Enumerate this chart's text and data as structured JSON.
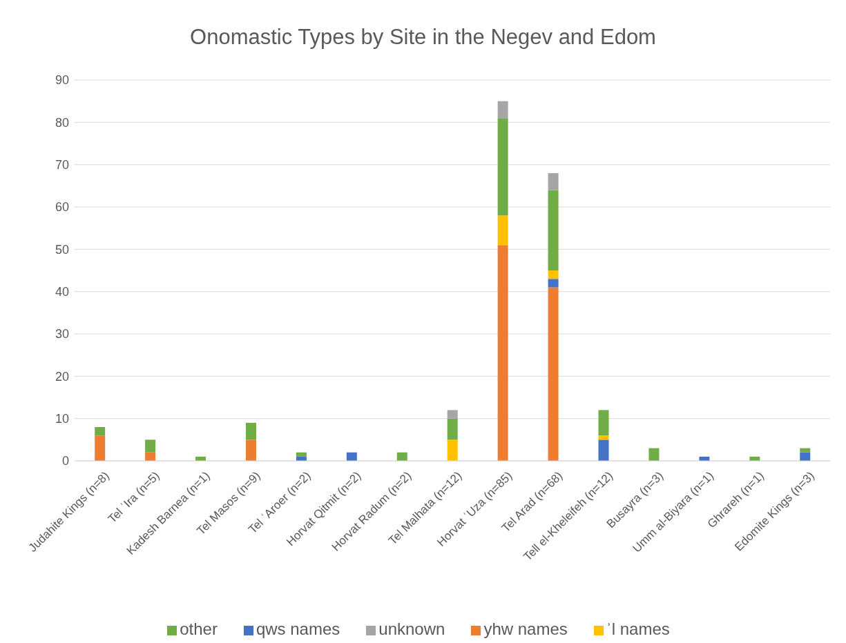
{
  "chart_data": {
    "type": "bar",
    "title": "Onomastic Types by Site in the Negev and Edom",
    "stacked": true,
    "categories": [
      "Judahite Kings (n=8)",
      "Tel ʿIra (n=5)",
      "Kadesh Barnea (n=1)",
      "Tel Masos (n=9)",
      "Tel ʿAroer (n=2)",
      "Horvat Qitmit (n=2)",
      "Horvat Radum (n=2)",
      "Tel Malhata (n=12)",
      "Horvat ʿUza (n=85)",
      "Tel Arad (n=68)",
      "Tell el-Kheleifeh (n=12)",
      "Busayra (n=3)",
      "Umm al-Biyara (n=1)",
      "Ghrareh (n=1)",
      "Edomite Kings (n=3)"
    ],
    "series": [
      {
        "name": "yhw names",
        "color": "#ed7d31",
        "values": [
          6,
          2,
          0,
          5,
          0,
          0,
          0,
          0,
          51,
          41,
          0,
          0,
          0,
          0,
          0
        ]
      },
      {
        "name": "qws names",
        "color": "#4472c4",
        "values": [
          0,
          0,
          0,
          0,
          1,
          2,
          0,
          0,
          0,
          2,
          5,
          0,
          1,
          0,
          2
        ]
      },
      {
        "name": "ʾl names",
        "color": "#ffc000",
        "values": [
          0,
          0,
          0,
          0,
          0,
          0,
          0,
          5,
          7,
          2,
          1,
          0,
          0,
          0,
          0
        ]
      },
      {
        "name": "other",
        "color": "#70ad47",
        "values": [
          2,
          3,
          1,
          4,
          1,
          0,
          2,
          5,
          23,
          19,
          6,
          3,
          0,
          1,
          1
        ]
      },
      {
        "name": "unknown",
        "color": "#a5a5a5",
        "values": [
          0,
          0,
          0,
          0,
          0,
          0,
          0,
          2,
          4,
          4,
          0,
          0,
          0,
          0,
          0
        ]
      }
    ],
    "ylim": [
      0,
      90
    ],
    "yticks": [
      0,
      10,
      20,
      30,
      40,
      50,
      60,
      70,
      80,
      90
    ],
    "grid": "y",
    "legend": "bottom"
  }
}
